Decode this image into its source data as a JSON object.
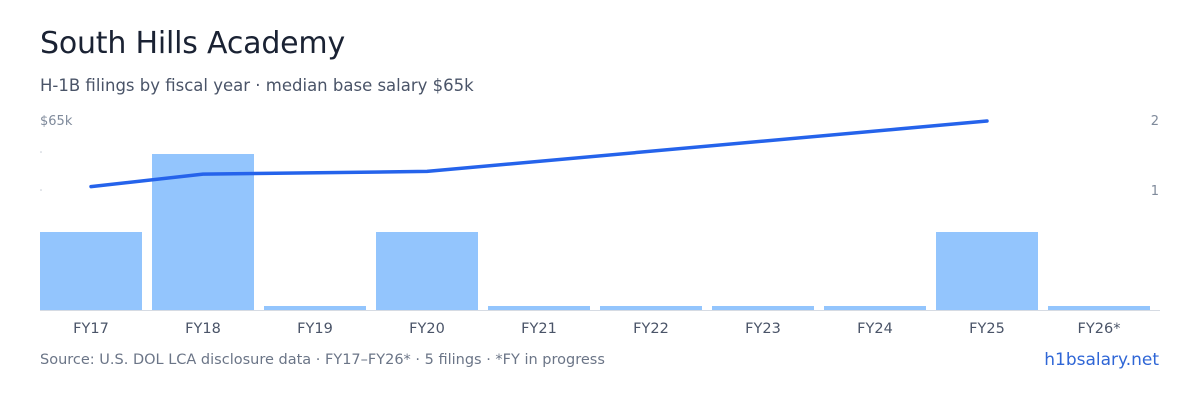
{
  "header": {
    "title": "South Hills Academy",
    "subtitle": "H-1B filings by fiscal year · median base salary $65k"
  },
  "footer": {
    "source": "Source: U.S. DOL LCA disclosure data · FY17–FY26* · 5 filings · *FY in progress",
    "brand": "h1bsalary.net"
  },
  "colors": {
    "bar": "#93c5fd",
    "line": "#2563eb",
    "axis": "#d6dbe3"
  },
  "chart_data": {
    "type": "bar",
    "categories": [
      "FY17",
      "FY18",
      "FY19",
      "FY20",
      "FY21",
      "FY22",
      "FY23",
      "FY24",
      "FY25",
      "FY26*"
    ],
    "series": [
      {
        "type": "bar",
        "axis": "left",
        "values": [
          1,
          2,
          0,
          1,
          0,
          0,
          0,
          0,
          1,
          0
        ]
      },
      {
        "type": "line",
        "axis": "right",
        "values": [
          1.05,
          1.23,
          null,
          1.27,
          null,
          null,
          null,
          null,
          2,
          null
        ]
      }
    ],
    "left_axis": {
      "tick_labels": [
        "$65k"
      ]
    },
    "right_axis": {
      "tick_labels": [
        "2",
        "1"
      ],
      "ylim": [
        0,
        2
      ]
    },
    "grid": false
  }
}
